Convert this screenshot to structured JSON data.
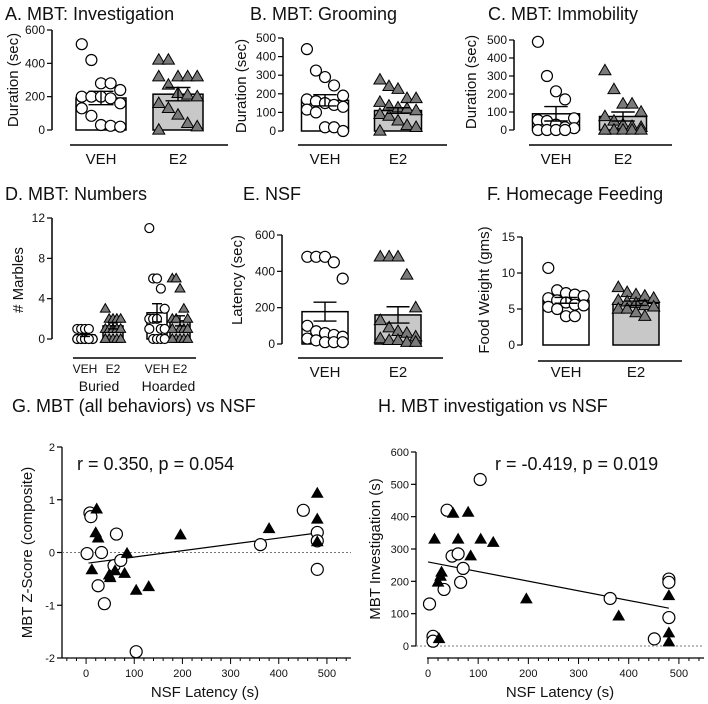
{
  "chart_data": [
    {
      "panel": "A",
      "type": "bar",
      "title": "A. MBT: Investigation",
      "ylabel": "Duration (sec)",
      "ylim": [
        0,
        600
      ],
      "yticks": [
        "0",
        "200",
        "400",
        "600"
      ],
      "groups": [
        {
          "label": "VEH",
          "marker": "circle",
          "bar_color": "#ffffff",
          "mean": 192,
          "sem": 40,
          "points": [
            515,
            420,
            280,
            280,
            240,
            200,
            200,
            200,
            190,
            160,
            130,
            85,
            30,
            25,
            20
          ]
        },
        {
          "label": "E2",
          "marker": "triangle",
          "bar_color": "#c8c8c8",
          "mean": 215,
          "sem": 40,
          "points": [
            420,
            420,
            320,
            320,
            320,
            320,
            270,
            220,
            210,
            200,
            160,
            130,
            90,
            40,
            20,
            0
          ]
        }
      ]
    },
    {
      "panel": "B",
      "type": "bar",
      "title": "B. MBT: Grooming",
      "ylabel": "Duration (sec)",
      "ylim": [
        0,
        500
      ],
      "yticks": [
        "0",
        "100",
        "200",
        "300",
        "400",
        "500"
      ],
      "groups": [
        {
          "label": "VEH",
          "marker": "circle",
          "bar_color": "#ffffff",
          "mean": 165,
          "sem": 30,
          "points": [
            440,
            325,
            290,
            245,
            190,
            170,
            160,
            150,
            140,
            130,
            115,
            100,
            20,
            20,
            0
          ]
        },
        {
          "label": "E2",
          "marker": "triangle",
          "bar_color": "#c8c8c8",
          "mean": 110,
          "sem": 15,
          "points": [
            275,
            240,
            225,
            175,
            175,
            155,
            135,
            125,
            120,
            110,
            90,
            80,
            55,
            30,
            20,
            0
          ]
        }
      ]
    },
    {
      "panel": "C",
      "type": "bar",
      "title": "C. MBT: Immobility",
      "ylabel": "Duration (sec)",
      "ylim": [
        0,
        500
      ],
      "yticks": [
        "0",
        "100",
        "200",
        "300",
        "400",
        "500"
      ],
      "groups": [
        {
          "label": "VEH",
          "marker": "circle",
          "bar_color": "#ffffff",
          "mean": 90,
          "sem": 40,
          "points": [
            490,
            300,
            215,
            170,
            65,
            55,
            50,
            30,
            15,
            10,
            0,
            0,
            0,
            0
          ]
        },
        {
          "label": "E2",
          "marker": "triangle",
          "bar_color": "#c8c8c8",
          "mean": 75,
          "sem": 25,
          "points": [
            330,
            225,
            145,
            145,
            100,
            75,
            50,
            30,
            20,
            15,
            0,
            0,
            0,
            0,
            0,
            0
          ]
        }
      ]
    },
    {
      "panel": "D",
      "type": "bar",
      "title": "D. MBT: Numbers",
      "ylabel": "# Marbles",
      "ylim": [
        0,
        12
      ],
      "yticks": [
        "0",
        "4",
        "8",
        "12"
      ],
      "group_labels": [
        "Buried",
        "Hoarded"
      ],
      "groups": [
        {
          "label": "VEH",
          "marker": "circle",
          "bar_color": "#ffffff",
          "mean": 0.4,
          "sem": 0.15,
          "points": [
            1,
            1,
            1,
            1,
            0,
            0,
            0,
            0,
            0,
            0,
            0,
            0,
            0,
            0
          ]
        },
        {
          "label": "E2",
          "marker": "triangle",
          "bar_color": "#c8c8c8",
          "mean": 1.3,
          "sem": 0.3,
          "points": [
            3,
            2,
            2,
            2,
            2,
            1,
            1,
            1,
            1,
            1,
            0,
            0,
            0,
            0,
            0,
            0
          ]
        },
        {
          "label": "VEH",
          "marker": "circle",
          "bar_color": "#ffffff",
          "mean": 2.6,
          "sem": 0.9,
          "points": [
            11,
            6,
            6,
            5,
            3,
            2,
            2,
            2,
            1,
            1,
            1,
            0,
            0,
            0,
            0
          ]
        },
        {
          "label": "E2",
          "marker": "triangle",
          "bar_color": "#c8c8c8",
          "mean": 1.8,
          "sem": 0.5,
          "points": [
            6,
            6,
            5,
            3,
            2,
            2,
            2,
            1,
            1,
            1,
            1,
            0,
            0,
            0,
            0,
            0
          ]
        }
      ]
    },
    {
      "panel": "E",
      "type": "bar",
      "title": "E. NSF",
      "ylabel": "Latency (sec)",
      "ylim": [
        0,
        600
      ],
      "yticks": [
        "0",
        "200",
        "400",
        "600"
      ],
      "groups": [
        {
          "label": "VEH",
          "marker": "circle",
          "bar_color": "#ffffff",
          "mean": 178,
          "sem": 52,
          "points": [
            480,
            480,
            480,
            450,
            360,
            100,
            70,
            60,
            50,
            40,
            30,
            20,
            10,
            10,
            10
          ]
        },
        {
          "label": "E2",
          "marker": "triangle",
          "bar_color": "#c8c8c8",
          "mean": 160,
          "sem": 45,
          "points": [
            480,
            480,
            480,
            380,
            200,
            130,
            90,
            70,
            60,
            40,
            30,
            20,
            20,
            10,
            10
          ]
        }
      ]
    },
    {
      "panel": "F",
      "type": "bar",
      "title": "F. Homecage Feeding",
      "ylabel": "Food Weight (gms)",
      "ylim": [
        0,
        15
      ],
      "yticks": [
        "0",
        "5",
        "10",
        "15"
      ],
      "groups": [
        {
          "label": "VEH",
          "marker": "circle",
          "bar_color": "#ffffff",
          "mean": 6.2,
          "sem": 0.4,
          "points": [
            10.7,
            7.6,
            7.2,
            7.0,
            6.8,
            6.5,
            6.2,
            5.9,
            5.6,
            5.5,
            5.3,
            5.0,
            4.0,
            4.0
          ]
        },
        {
          "label": "E2",
          "marker": "triangle",
          "bar_color": "#c8c8c8",
          "mean": 5.8,
          "sem": 0.3,
          "points": [
            8.0,
            7.3,
            7.0,
            6.8,
            6.5,
            6.2,
            6.0,
            5.8,
            5.5,
            5.3,
            5.0,
            5.0,
            4.5,
            4.0
          ]
        }
      ]
    },
    {
      "panel": "G",
      "type": "scatter",
      "title": "G. MBT (all behaviors) vs NSF",
      "annotation": "r = 0.350, p = 0.054",
      "xlabel": "NSF Latency (s)",
      "ylabel": "MBT Z-Score (composite)",
      "xlim": [
        -50,
        550
      ],
      "ylim": [
        -2,
        2
      ],
      "xticks": [
        "0",
        "100",
        "200",
        "300",
        "400",
        "500"
      ],
      "yticks": [
        "-2",
        "-1",
        "0",
        "1",
        "2"
      ],
      "reference_y": 0,
      "fit": {
        "x": [
          5,
          480
        ],
        "y": [
          -0.2,
          0.37
        ]
      },
      "series": [
        {
          "marker": "circle",
          "color": "#ffffff",
          "points": [
            [
              8,
              0.75
            ],
            [
              10,
              0.68
            ],
            [
              2,
              -0.02
            ],
            [
              32,
              0
            ],
            [
              63,
              0.35
            ],
            [
              58,
              -0.25
            ],
            [
              72,
              -0.15
            ],
            [
              25,
              -0.63
            ],
            [
              38,
              -0.97
            ],
            [
              104,
              -1.88
            ],
            [
              362,
              0.15
            ],
            [
              451,
              0.8
            ],
            [
              480,
              0.38
            ],
            [
              480,
              0.22
            ],
            [
              480,
              -0.32
            ]
          ]
        },
        {
          "marker": "triangle",
          "color": "#000000",
          "points": [
            [
              22,
              0.82
            ],
            [
              20,
              0.37
            ],
            [
              25,
              0.27
            ],
            [
              12,
              -0.33
            ],
            [
              48,
              -0.43
            ],
            [
              50,
              -0.48
            ],
            [
              60,
              -0.35
            ],
            [
              80,
              -0.4
            ],
            [
              85,
              -0.02
            ],
            [
              104,
              -0.72
            ],
            [
              130,
              -0.65
            ],
            [
              196,
              0.33
            ],
            [
              380,
              0.45
            ],
            [
              480,
              1.12
            ],
            [
              480,
              0.63
            ],
            [
              480,
              0.2
            ]
          ]
        }
      ]
    },
    {
      "panel": "H",
      "type": "scatter",
      "title": "H. MBT investigation vs NSF",
      "annotation": "r = -0.419, p = 0.019",
      "xlabel": "NSF Latency (s)",
      "ylabel": "MBT Investigation (s)",
      "xlim": [
        0,
        550
      ],
      "ylim": [
        0,
        600
      ],
      "xticks": [
        "0",
        "100",
        "200",
        "300",
        "400",
        "500"
      ],
      "yticks": [
        "0",
        "100",
        "200",
        "300",
        "400",
        "500",
        "600"
      ],
      "reference_y": 0,
      "fit": {
        "x": [
          0,
          480
        ],
        "y": [
          260,
          117
        ]
      },
      "series": [
        {
          "marker": "circle",
          "color": "#ffffff",
          "points": [
            [
              3,
              130
            ],
            [
              10,
              30
            ],
            [
              10,
              15
            ],
            [
              38,
              420
            ],
            [
              48,
              278
            ],
            [
              60,
              285
            ],
            [
              70,
              240
            ],
            [
              65,
              197
            ],
            [
              32,
              175
            ],
            [
              104,
              515
            ],
            [
              363,
              147
            ],
            [
              451,
              22
            ],
            [
              480,
              207
            ],
            [
              480,
              197
            ],
            [
              480,
              88
            ]
          ]
        },
        {
          "marker": "triangle",
          "color": "#000000",
          "points": [
            [
              13,
              330
            ],
            [
              50,
              410
            ],
            [
              80,
              413
            ],
            [
              60,
              330
            ],
            [
              85,
              278
            ],
            [
              105,
              330
            ],
            [
              130,
              320
            ],
            [
              27,
              228
            ],
            [
              25,
              215
            ],
            [
              20,
              197
            ],
            [
              22,
              22
            ],
            [
              196,
              145
            ],
            [
              380,
              92
            ],
            [
              480,
              155
            ],
            [
              480,
              40
            ],
            [
              480,
              12
            ]
          ]
        }
      ]
    }
  ]
}
